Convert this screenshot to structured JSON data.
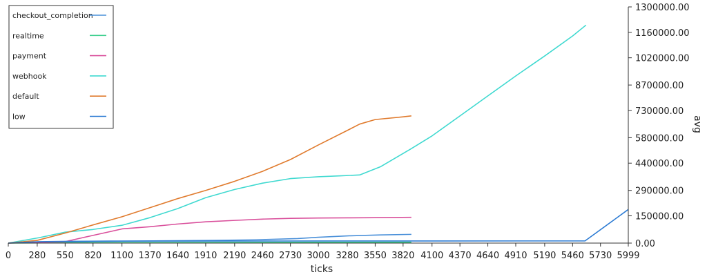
{
  "chart_data": {
    "type": "line",
    "title": "",
    "xlabel": "ticks",
    "ylabel": "avg",
    "xlim": [
      0,
      5999
    ],
    "ylim": [
      0,
      1300000
    ],
    "x_ticks": [
      "0",
      "280",
      "550",
      "820",
      "1100",
      "1370",
      "1640",
      "1910",
      "2190",
      "2460",
      "2730",
      "3000",
      "3280",
      "3550",
      "3820",
      "4100",
      "4370",
      "4640",
      "4910",
      "5190",
      "5460",
      "5730",
      "5999"
    ],
    "y_ticks": [
      {
        "value": 0,
        "label": "0.00"
      },
      {
        "value": 150000,
        "label": "150000.00"
      },
      {
        "value": 290000,
        "label": "290000.00"
      },
      {
        "value": 440000,
        "label": "440000.00"
      },
      {
        "value": 580000,
        "label": "580000.00"
      },
      {
        "value": 730000,
        "label": "730000.00"
      },
      {
        "value": 870000,
        "label": "870000.00"
      },
      {
        "value": 1020000,
        "label": "1020000.00"
      },
      {
        "value": 1160000,
        "label": "1160000.00"
      },
      {
        "value": 1300000,
        "label": "1300000.00"
      }
    ],
    "y_axis_position": "right",
    "grid": false,
    "legend_position": "top-left",
    "series": [
      {
        "name": "checkout_completion",
        "color": "#4a90d9",
        "points": [
          [
            0,
            0
          ],
          [
            300,
            4000
          ],
          [
            800,
            9000
          ],
          [
            1400,
            12000
          ],
          [
            2000,
            15000
          ],
          [
            2400,
            18000
          ],
          [
            2800,
            25000
          ],
          [
            3000,
            32000
          ],
          [
            3300,
            40000
          ],
          [
            3600,
            45000
          ],
          [
            3900,
            48000
          ]
        ]
      },
      {
        "name": "realtime",
        "color": "#3ccf8e",
        "points": [
          [
            0,
            0
          ],
          [
            500,
            1500
          ],
          [
            1000,
            2500
          ],
          [
            2000,
            3500
          ],
          [
            3000,
            4500
          ],
          [
            3900,
            5000
          ]
        ]
      },
      {
        "name": "payment",
        "color": "#d94f9b",
        "points": [
          [
            0,
            0
          ],
          [
            550,
            8000
          ],
          [
            800,
            40000
          ],
          [
            1000,
            65000
          ],
          [
            1100,
            78000
          ],
          [
            1370,
            90000
          ],
          [
            1640,
            105000
          ],
          [
            1910,
            117000
          ],
          [
            2190,
            125000
          ],
          [
            2460,
            132000
          ],
          [
            2730,
            136000
          ],
          [
            3000,
            138000
          ],
          [
            3280,
            139000
          ],
          [
            3550,
            140000
          ],
          [
            3900,
            142000
          ]
        ]
      },
      {
        "name": "webhook",
        "color": "#3fd9d0",
        "points": [
          [
            0,
            0
          ],
          [
            300,
            30000
          ],
          [
            550,
            60000
          ],
          [
            820,
            75000
          ],
          [
            1100,
            98000
          ],
          [
            1370,
            140000
          ],
          [
            1640,
            190000
          ],
          [
            1910,
            250000
          ],
          [
            2190,
            295000
          ],
          [
            2460,
            330000
          ],
          [
            2730,
            355000
          ],
          [
            3000,
            365000
          ],
          [
            3200,
            370000
          ],
          [
            3400,
            375000
          ],
          [
            3600,
            420000
          ],
          [
            3900,
            520000
          ],
          [
            4100,
            590000
          ],
          [
            4370,
            700000
          ],
          [
            4640,
            810000
          ],
          [
            4910,
            920000
          ],
          [
            5190,
            1030000
          ],
          [
            5460,
            1140000
          ],
          [
            5590,
            1200000
          ]
        ]
      },
      {
        "name": "default",
        "color": "#e07b2e",
        "points": [
          [
            0,
            0
          ],
          [
            280,
            15000
          ],
          [
            550,
            55000
          ],
          [
            820,
            100000
          ],
          [
            1100,
            145000
          ],
          [
            1370,
            195000
          ],
          [
            1640,
            245000
          ],
          [
            1910,
            290000
          ],
          [
            2190,
            340000
          ],
          [
            2460,
            395000
          ],
          [
            2730,
            460000
          ],
          [
            3000,
            540000
          ],
          [
            3280,
            620000
          ],
          [
            3400,
            655000
          ],
          [
            3550,
            680000
          ],
          [
            3820,
            695000
          ],
          [
            3900,
            700000
          ]
        ]
      },
      {
        "name": "low",
        "color": "#2c7bd3",
        "points": [
          [
            0,
            0
          ],
          [
            300,
            8000
          ],
          [
            600,
            10000
          ],
          [
            1000,
            11000
          ],
          [
            3000,
            11500
          ],
          [
            5580,
            12000
          ],
          [
            5999,
            185000
          ]
        ]
      }
    ]
  }
}
